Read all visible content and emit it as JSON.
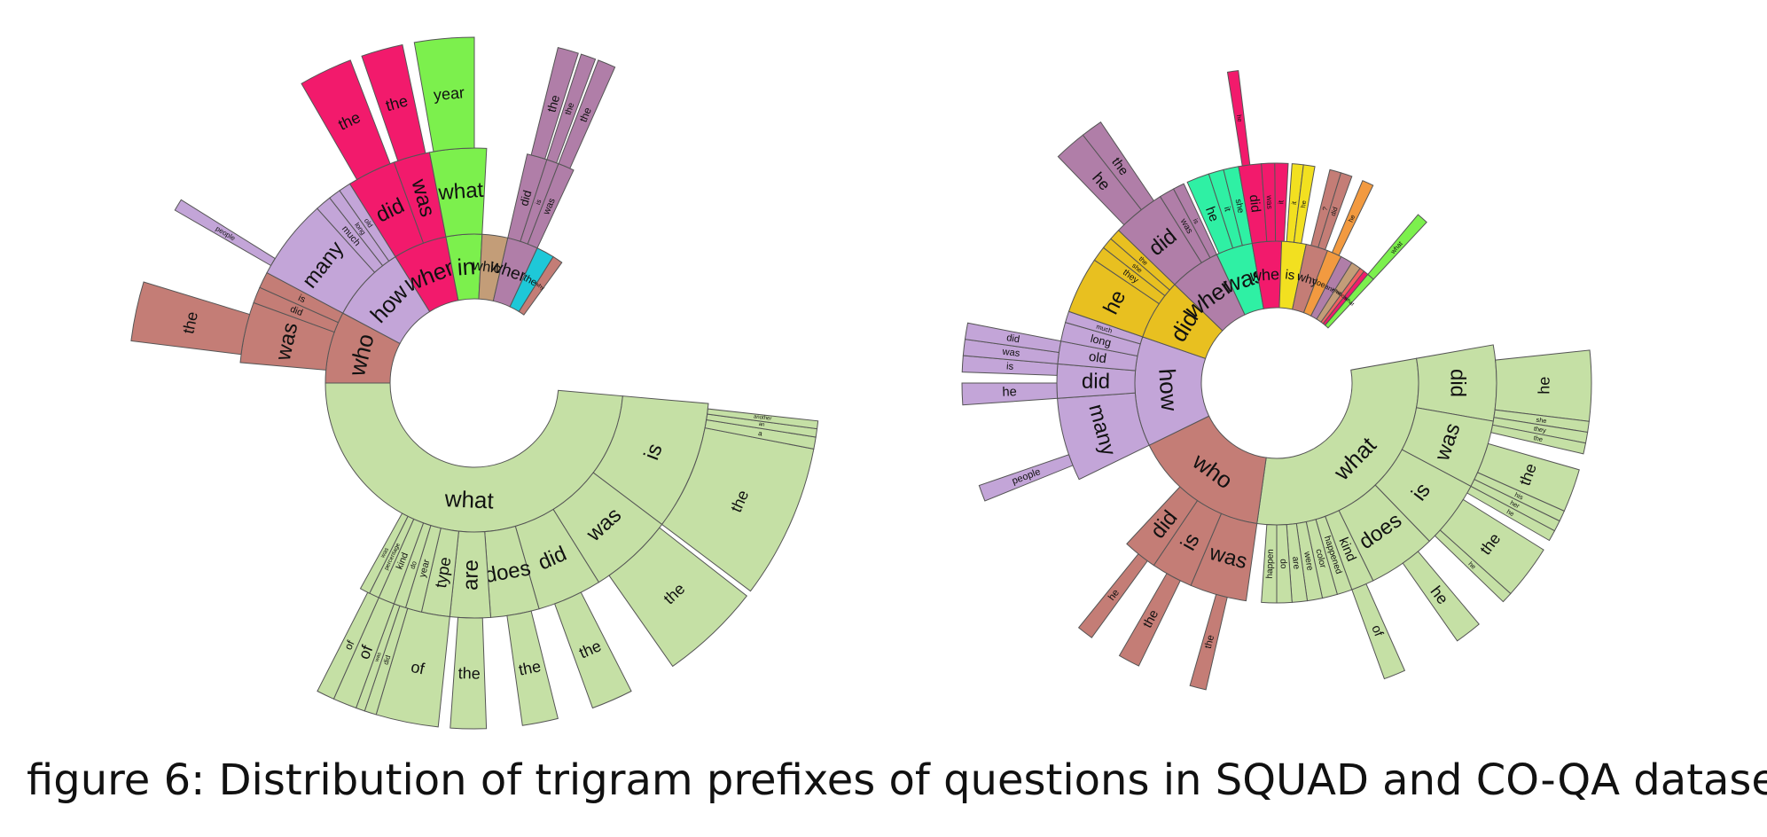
{
  "caption": "figure 6: Distribution of trigram prefixes of questions in SQUAD and CO-QA datasets",
  "chart_data": [
    {
      "type": "sunburst",
      "name": "SQUAD",
      "levels": [
        "first word",
        "second word",
        "third word"
      ],
      "tree": [
        {
          "label": "what",
          "color": "#c5e0a5",
          "start": 95,
          "end": 270,
          "children": [
            {
              "label": "is",
              "start": 95,
              "end": 127,
              "children": [
                {
                  "label": "the",
                  "start": 101,
                  "end": 127
                },
                {
                  "label": "a",
                  "start": 99,
                  "end": 101
                },
                {
                  "label": "an",
                  "start": 97.6,
                  "end": 99
                },
                {
                  "label": "another",
                  "start": 96.3,
                  "end": 97.6
                }
              ]
            },
            {
              "label": "was",
              "start": 127,
              "end": 148,
              "children": [
                {
                  "label": "the",
                  "start": 128,
                  "end": 145
                }
              ]
            },
            {
              "label": "did",
              "start": 148,
              "end": 164,
              "children": [
                {
                  "label": "the",
                  "start": 153,
                  "end": 160
                }
              ]
            },
            {
              "label": "does",
              "start": 164,
              "end": 176,
              "children": [
                {
                  "label": "the",
                  "start": 166,
                  "end": 172
                }
              ]
            },
            {
              "label": "are",
              "start": 176,
              "end": 186,
              "children": [
                {
                  "label": "the",
                  "start": 178,
                  "end": 184
                }
              ]
            },
            {
              "label": "type",
              "start": 186,
              "end": 193,
              "children": [
                {
                  "label": "of",
                  "start": 186,
                  "end": 196.5
                }
              ]
            },
            {
              "label": "year",
              "start": 193,
              "end": 197,
              "children": [
                {
                  "label": "did",
                  "start": 196.5,
                  "end": 198.5
                },
                {
                  "label": "was",
                  "start": 198.5,
                  "end": 200
                }
              ]
            },
            {
              "label": "do",
              "start": 197,
              "end": 200
            },
            {
              "label": "kind",
              "start": 200,
              "end": 204,
              "children": [
                {
                  "label": "of",
                  "start": 200,
                  "end": 204
                }
              ]
            },
            {
              "label": "percentage",
              "start": 204,
              "end": 206.5,
              "children": [
                {
                  "label": "of",
                  "start": 204,
                  "end": 207
                }
              ]
            },
            {
              "label": "was",
              "start": 206.5,
              "end": 209
            }
          ]
        },
        {
          "label": "who",
          "color": "#c47d76",
          "start": 270,
          "end": 298,
          "children": [
            {
              "label": "was",
              "start": 275,
              "end": 290,
              "children": [
                {
                  "label": "the",
                  "start": 277,
                  "end": 287
                }
              ]
            },
            {
              "label": "did",
              "start": 290,
              "end": 294
            },
            {
              "label": "is",
              "start": 294,
              "end": 298
            }
          ]
        },
        {
          "label": "how",
          "color": "#c3a5d8",
          "start": 298,
          "end": 328,
          "children": [
            {
              "label": "many",
              "start": 298,
              "end": 318,
              "children": [
                {
                  "label": "people",
                  "start": 300,
                  "end": 302
                }
              ]
            },
            {
              "label": "much",
              "start": 318,
              "end": 322
            },
            {
              "label": "long",
              "start": 322,
              "end": 325
            },
            {
              "label": "old",
              "start": 325,
              "end": 328
            }
          ]
        },
        {
          "label": "when",
          "color": "#f21a6c",
          "start": 328,
          "end": 349,
          "children": [
            {
              "label": "did",
              "start": 328,
              "end": 340,
              "children": [
                {
                  "label": "the",
                  "start": 330,
                  "end": 339
                }
              ]
            },
            {
              "label": "was",
              "start": 340,
              "end": 349,
              "children": [
                {
                  "label": "the",
                  "start": 341,
                  "end": 348
                }
              ]
            }
          ]
        },
        {
          "label": "in",
          "color": "#7cf04d",
          "start": 349,
          "end": 3,
          "children": [
            {
              "label": "what",
              "start": 349,
              "end": 3,
              "children": [
                {
                  "label": "year",
                  "start": 350,
                  "end": 360
                }
              ]
            }
          ]
        },
        {
          "label": "which",
          "color": "#c39d78",
          "start": 3,
          "end": 13
        },
        {
          "label": "where",
          "color": "#b07ea8",
          "start": 13,
          "end": 25,
          "children": [
            {
              "label": "did",
              "start": 13,
              "end": 18,
              "children": [
                {
                  "label": "the",
                  "start": 14,
                  "end": 17.5
                }
              ]
            },
            {
              "label": "is",
              "start": 18,
              "end": 21,
              "children": [
                {
                  "label": "the",
                  "start": 18,
                  "end": 20.5
                }
              ]
            },
            {
              "label": "was",
              "start": 21,
              "end": 25,
              "children": [
                {
                  "label": "the",
                  "start": 21,
                  "end": 24
                }
              ]
            }
          ]
        },
        {
          "label": "the",
          "color": "#1ec8d8",
          "start": 25,
          "end": 32
        },
        {
          "label": "why",
          "color": "#c47d76",
          "start": 32,
          "end": 36
        }
      ]
    },
    {
      "type": "sunburst",
      "name": "CO-QA",
      "levels": [
        "first word",
        "second word",
        "third word"
      ],
      "tree": [
        {
          "label": "what",
          "color": "#c5e0a5",
          "start": 80,
          "end": 188,
          "children": [
            {
              "label": "did",
              "start": 80,
              "end": 100,
              "children": [
                {
                  "label": "he",
                  "start": 84,
                  "end": 97
                },
                {
                  "label": "she",
                  "start": 97,
                  "end": 99
                },
                {
                  "label": "they",
                  "start": 99,
                  "end": 101
                },
                {
                  "label": "the",
                  "start": 101,
                  "end": 103
                }
              ]
            },
            {
              "label": "was",
              "start": 100,
              "end": 118,
              "children": [
                {
                  "label": "the",
                  "start": 106,
                  "end": 114
                },
                {
                  "label": "his",
                  "start": 114,
                  "end": 116
                },
                {
                  "label": "her",
                  "start": 116,
                  "end": 118
                },
                {
                  "label": "he",
                  "start": 118,
                  "end": 120
                }
              ]
            },
            {
              "label": "is",
              "start": 118,
              "end": 136,
              "children": [
                {
                  "label": "the",
                  "start": 122,
                  "end": 132
                },
                {
                  "label": "he",
                  "start": 132,
                  "end": 134
                }
              ]
            },
            {
              "label": "does",
              "start": 136,
              "end": 154,
              "children": [
                {
                  "label": "he",
                  "start": 140,
                  "end": 145
                }
              ]
            },
            {
              "label": "kind",
              "start": 154,
              "end": 160,
              "children": [
                {
                  "label": "of",
                  "start": 156,
                  "end": 160
                }
              ]
            },
            {
              "label": "happened",
              "start": 160,
              "end": 164
            },
            {
              "label": "color",
              "start": 164,
              "end": 168
            },
            {
              "label": "were",
              "start": 168,
              "end": 172
            },
            {
              "label": "are",
              "start": 172,
              "end": 176
            },
            {
              "label": "do",
              "start": 176,
              "end": 180
            },
            {
              "label": "happen",
              "start": 180,
              "end": 184
            }
          ]
        },
        {
          "label": "who",
          "color": "#c47d76",
          "start": 188,
          "end": 244,
          "children": [
            {
              "label": "was",
              "start": 188,
              "end": 203,
              "children": [
                {
                  "label": "the",
                  "start": 193,
                  "end": 196
                }
              ]
            },
            {
              "label": "is",
              "start": 203,
              "end": 214,
              "children": [
                {
                  "label": "the",
                  "start": 206,
                  "end": 210
                }
              ]
            },
            {
              "label": "did",
              "start": 214,
              "end": 223,
              "children": [
                {
                  "label": "he",
                  "start": 216,
                  "end": 219
                }
              ]
            }
          ]
        },
        {
          "label": "how",
          "color": "#c3a5d8",
          "start": 244,
          "end": 289,
          "children": [
            {
              "label": "many",
              "start": 244,
              "end": 266,
              "children": [
                {
                  "label": "people",
                  "start": 248,
                  "end": 251
                }
              ]
            },
            {
              "label": "did",
              "start": 266,
              "end": 275,
              "children": [
                {
                  "label": "he",
                  "start": 266,
                  "end": 270
                }
              ]
            },
            {
              "label": "old",
              "start": 275,
              "end": 281,
              "children": [
                {
                  "label": "is",
                  "start": 272,
                  "end": 275
                }
              ]
            },
            {
              "label": "long",
              "start": 281,
              "end": 286,
              "children": [
                {
                  "label": "was",
                  "start": 275,
                  "end": 278
                },
                {
                  "label": "did",
                  "start": 278,
                  "end": 281
                }
              ]
            },
            {
              "label": "much",
              "start": 286,
              "end": 289
            }
          ]
        },
        {
          "label": "did",
          "color": "#e8c020",
          "start": 289,
          "end": 314,
          "children": [
            {
              "label": "he",
              "start": 289,
              "end": 304
            },
            {
              "label": "they",
              "start": 304,
              "end": 308
            },
            {
              "label": "she",
              "start": 308,
              "end": 311
            },
            {
              "label": "the",
              "start": 311,
              "end": 314
            }
          ]
        },
        {
          "label": "where",
          "color": "#b07ea8",
          "start": 314,
          "end": 335,
          "children": [
            {
              "label": "did",
              "start": 314,
              "end": 328,
              "children": [
                {
                  "label": "he",
                  "start": 316,
                  "end": 322
                },
                {
                  "label": "the",
                  "start": 322,
                  "end": 326
                }
              ]
            },
            {
              "label": "was",
              "start": 328,
              "end": 332
            },
            {
              "label": "is",
              "start": 332,
              "end": 335
            }
          ]
        },
        {
          "label": "was",
          "color": "#2ff0a4",
          "start": 335,
          "end": 350,
          "children": [
            {
              "label": "he",
              "start": 336,
              "end": 342
            },
            {
              "label": "it",
              "start": 342,
              "end": 346
            },
            {
              "label": "she",
              "start": 346,
              "end": 350
            }
          ]
        },
        {
          "label": "when",
          "color": "#f21a6c",
          "start": 350,
          "end": 2,
          "children": [
            {
              "label": "did",
              "start": 350,
              "end": 356,
              "children": [
                {
                  "label": "he",
                  "start": 351,
                  "end": 353
                }
              ]
            },
            {
              "label": "was",
              "start": 356,
              "end": 359.5
            },
            {
              "label": "it",
              "start": 359.5,
              "end": 3
            }
          ]
        },
        {
          "label": "is",
          "color": "#f2e020",
          "start": 2,
          "end": 12,
          "children": [
            {
              "label": "it",
              "start": 4,
              "end": 7
            },
            {
              "label": "he",
              "start": 7,
              "end": 10
            }
          ]
        },
        {
          "label": "why",
          "color": "#c47d76",
          "start": 12,
          "end": 21,
          "children": [
            {
              "label": "?",
              "start": 14,
              "end": 17
            },
            {
              "label": "did",
              "start": 17,
              "end": 20
            }
          ]
        },
        {
          "label": "does",
          "color": "#f29a40",
          "start": 21,
          "end": 27,
          "children": [
            {
              "label": "he",
              "start": 23,
              "end": 26
            }
          ]
        },
        {
          "label": "and",
          "color": "#b07ea8",
          "start": 27,
          "end": 32
        },
        {
          "label": "which",
          "color": "#c39d78",
          "start": 32,
          "end": 36
        },
        {
          "label": "whose",
          "color": "#f26060",
          "start": 36,
          "end": 38
        },
        {
          "label": "is",
          "color": "#f21a6c",
          "start": 38,
          "end": 40
        },
        {
          "label": "what",
          "color": "#7cf04d",
          "start": 40,
          "end": 43,
          "children": [
            {
              "label": "what",
              "start": 40,
              "end": 43
            }
          ]
        }
      ]
    }
  ]
}
